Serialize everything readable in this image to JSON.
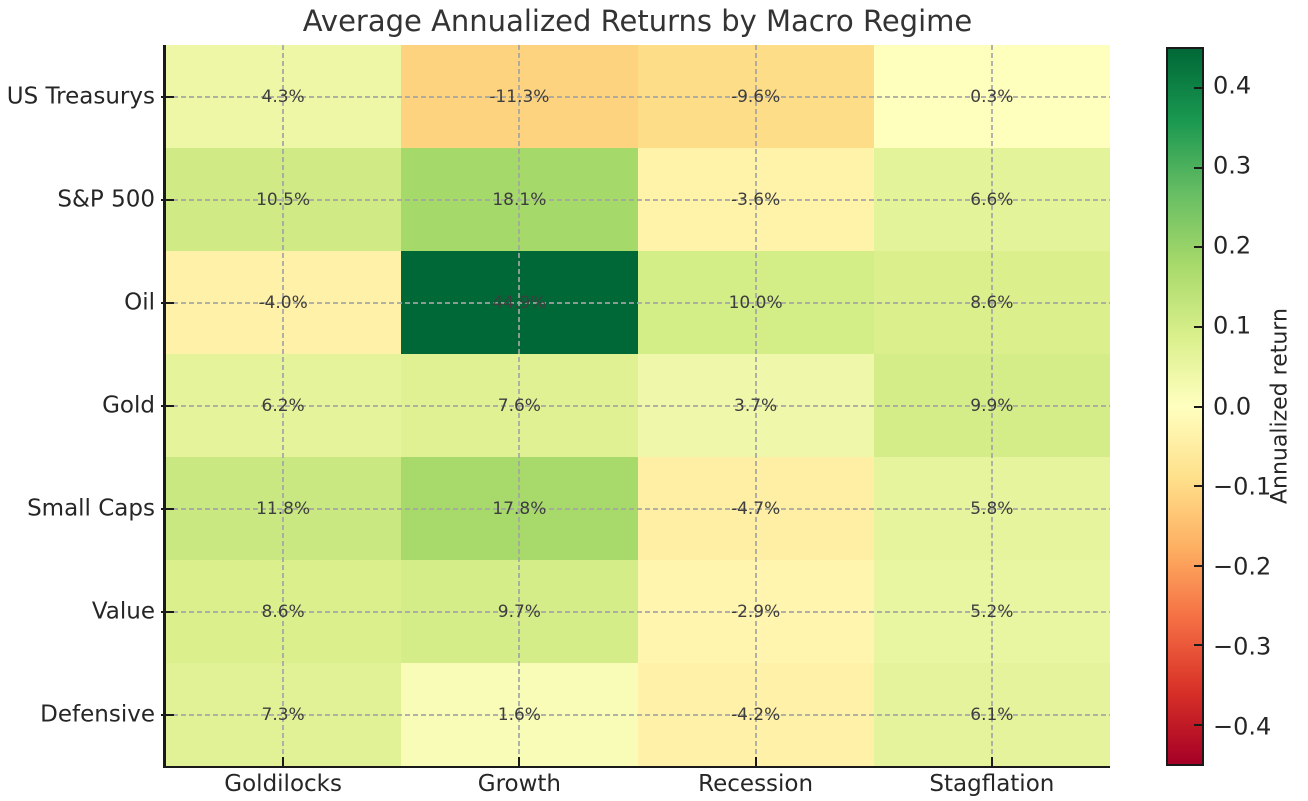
{
  "title": "Average Annualized Returns by Macro Regime",
  "chart_data": {
    "type": "heatmap",
    "title": "Average Annualized Returns by Macro Regime",
    "rows": [
      "US Treasurys",
      "S&P 500",
      "Oil",
      "Gold",
      "Small Caps",
      "Value",
      "Defensive"
    ],
    "columns": [
      "Goldilocks",
      "Growth",
      "Recession",
      "Stagflation"
    ],
    "values_pct": [
      [
        4.3,
        -11.3,
        -9.6,
        0.3
      ],
      [
        10.5,
        18.1,
        -3.6,
        6.6
      ],
      [
        -4.0,
        44.9,
        10.0,
        8.6
      ],
      [
        6.2,
        7.6,
        3.7,
        9.9
      ],
      [
        11.8,
        17.8,
        -4.7,
        5.8
      ],
      [
        8.6,
        9.7,
        -2.9,
        5.2
      ],
      [
        7.3,
        1.6,
        -4.2,
        6.1
      ]
    ],
    "cell_labels": [
      [
        "4.3%",
        "-11.3%",
        "-9.6%",
        "0.3%"
      ],
      [
        "10.5%",
        "18.1%",
        "-3.6%",
        "6.6%"
      ],
      [
        "-4.0%",
        "44.9%",
        "10.0%",
        "8.6%"
      ],
      [
        "6.2%",
        "7.6%",
        "3.7%",
        "9.9%"
      ],
      [
        "11.8%",
        "17.8%",
        "-4.7%",
        "5.8%"
      ],
      [
        "8.6%",
        "9.7%",
        "-2.9%",
        "5.2%"
      ],
      [
        "7.3%",
        "1.6%",
        "-4.2%",
        "6.1%"
      ]
    ],
    "grid": "dashed, through cell centers",
    "colorbar": {
      "label": "Annualized return",
      "position": "right",
      "vmin": -0.449,
      "vmax": 0.449,
      "tick_values": [
        0.4,
        0.3,
        0.2,
        0.1,
        0.0,
        -0.1,
        -0.2,
        -0.3,
        -0.4
      ],
      "tick_labels": [
        "0.4",
        "0.3",
        "0.2",
        "0.1",
        "0.0",
        "−0.1",
        "−0.2",
        "−0.3",
        "−0.4"
      ],
      "colormap": "RdYlGn"
    }
  },
  "colors": {
    "background": "#ffffff",
    "title_text": "#333333",
    "axis_label_text": "#262626",
    "cell_value_text": "#3e3e3e",
    "spine": "#1a1a1a",
    "gridline": "#a4a4a4",
    "cmap_stops": [
      "#a50026",
      "#d73027",
      "#f46d43",
      "#fdae61",
      "#fee08b",
      "#ffffbf",
      "#d9ef8b",
      "#a6d96a",
      "#66bd63",
      "#1a9850",
      "#006837"
    ]
  },
  "layout_hints": {
    "legend_position": "right colorbar",
    "x_axis_side": "bottom",
    "y_axis_side": "left"
  }
}
